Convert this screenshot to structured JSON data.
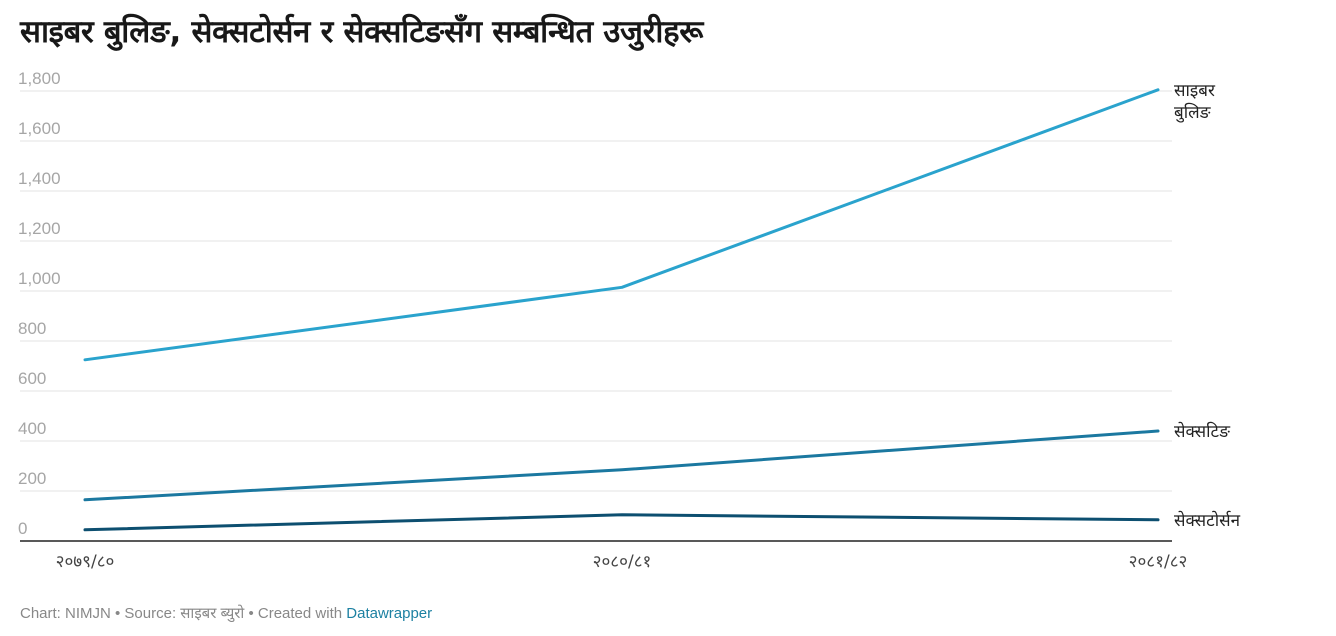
{
  "title": "साइबर बुलिङ, सेक्सटोर्सन र सेक्सटिङसँग सम्बन्धित उजुरीहरू",
  "footer": {
    "chart_prefix": "Chart: NIMJN • Source: साइबर ब्युरो • Created with ",
    "link_text": "Datawrapper"
  },
  "colors": {
    "cyber_bullying": "#2aa3cd",
    "sexting": "#1b78a0",
    "sextortion": "#0d4f70",
    "grid": "#e3e3e3",
    "axis": "#222222"
  },
  "chart_data": {
    "type": "line",
    "title": "साइबर बुलिङ, सेक्सटोर्सन र सेक्सटिङसँग सम्बन्धित उजुरीहरू",
    "xlabel": "",
    "ylabel": "",
    "categories": [
      "२०७९/८०",
      "२०८०/८१",
      "२०८१/८२"
    ],
    "ylim": [
      0,
      1800
    ],
    "yticks": [
      0,
      200,
      400,
      600,
      800,
      1000,
      1200,
      1400,
      1600,
      1800
    ],
    "ytick_labels": [
      "0",
      "200",
      "400",
      "600",
      "800",
      "1,000",
      "1,200",
      "1,400",
      "1,600",
      "1,800"
    ],
    "grid": true,
    "series": [
      {
        "name": "साइबर बुलिङ",
        "label_lines": [
          "साइबर",
          "बुलिङ"
        ],
        "color_key": "cyber_bullying",
        "values": [
          725,
          1015,
          1805
        ]
      },
      {
        "name": "सेक्सटिङ",
        "label_lines": [
          "सेक्सटिङ"
        ],
        "color_key": "sexting",
        "values": [
          165,
          285,
          440
        ]
      },
      {
        "name": "सेक्सटोर्सन",
        "label_lines": [
          "सेक्सटोर्सन"
        ],
        "color_key": "sextortion",
        "values": [
          45,
          105,
          85
        ]
      }
    ]
  }
}
